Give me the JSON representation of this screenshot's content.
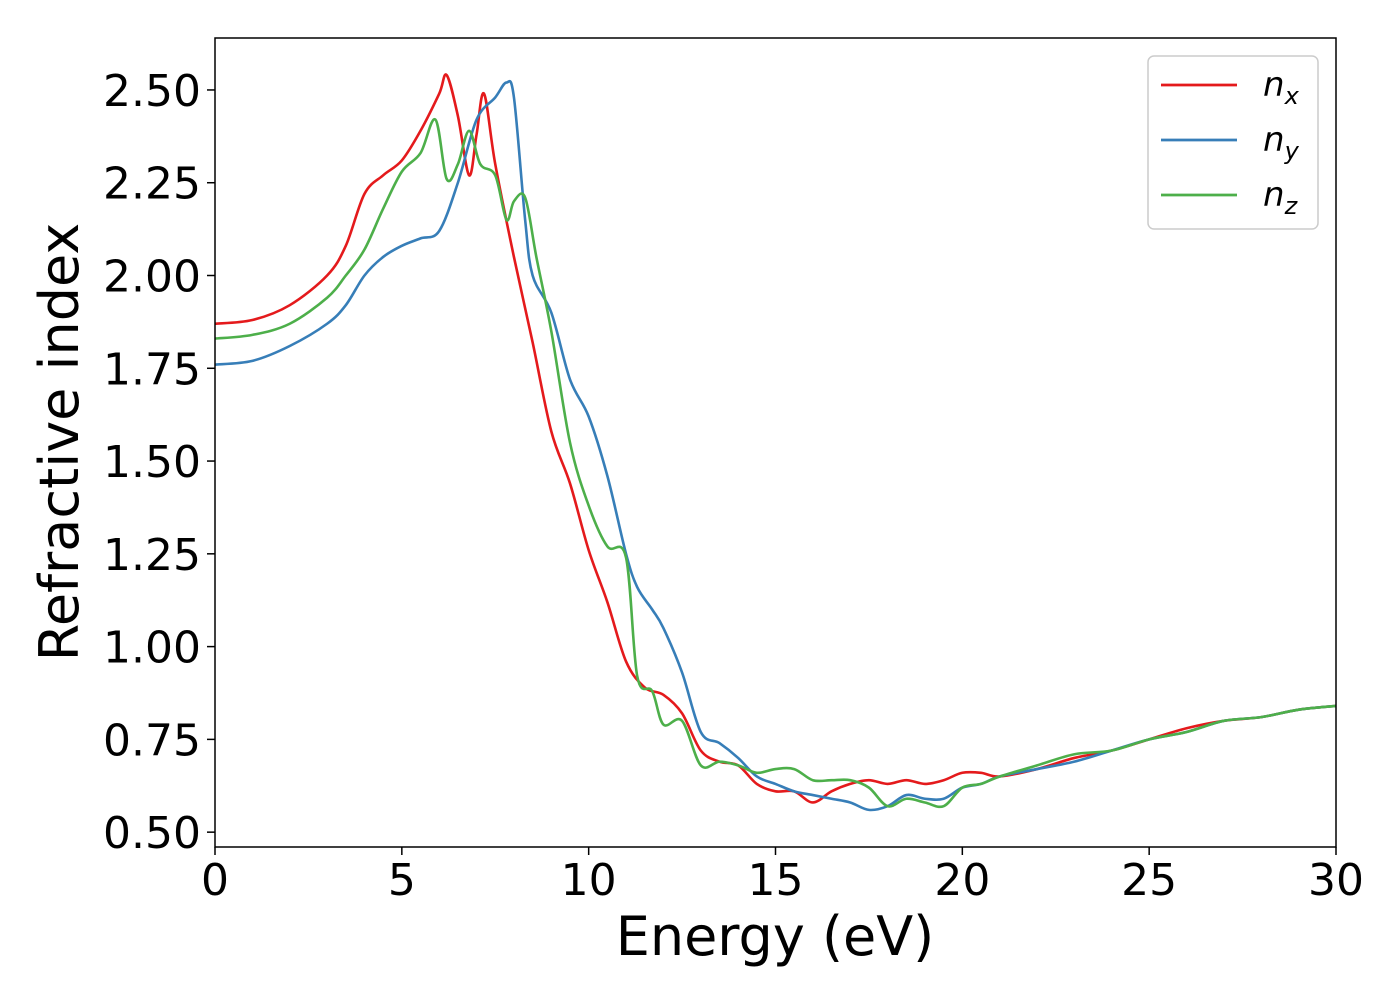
{
  "chart_data": {
    "type": "line",
    "title": "",
    "xlabel": "Energy (eV)",
    "ylabel": "Refractive index",
    "xlim": [
      0,
      30
    ],
    "ylim": [
      0.46,
      2.64
    ],
    "xticks": [
      0,
      5,
      10,
      15,
      20,
      25,
      30
    ],
    "xtick_labels": [
      "0",
      "5",
      "10",
      "15",
      "20",
      "25",
      "30"
    ],
    "yticks": [
      0.5,
      0.75,
      1.0,
      1.25,
      1.5,
      1.75,
      2.0,
      2.25,
      2.5
    ],
    "ytick_labels": [
      "0.50",
      "0.75",
      "1.00",
      "1.25",
      "1.50",
      "1.75",
      "2.00",
      "2.25",
      "2.50"
    ],
    "grid": false,
    "legend_position": "top-right",
    "series": [
      {
        "name": "n",
        "subscript": "x",
        "color": "#e41a1c",
        "x": [
          0,
          1,
          2,
          3,
          3.5,
          4,
          4.5,
          5,
          5.5,
          6,
          6.2,
          6.5,
          6.8,
          7.0,
          7.2,
          7.5,
          8.0,
          8.5,
          9.0,
          9.5,
          10,
          10.5,
          11,
          11.5,
          12,
          12.5,
          13,
          13.5,
          14,
          14.5,
          15,
          15.5,
          16,
          16.5,
          17,
          17.5,
          18,
          18.5,
          19,
          19.5,
          20,
          20.5,
          21,
          22,
          23,
          24,
          25,
          26,
          27,
          28,
          29,
          30
        ],
        "y": [
          1.87,
          1.88,
          1.92,
          2.0,
          2.08,
          2.22,
          2.27,
          2.31,
          2.39,
          2.49,
          2.54,
          2.43,
          2.27,
          2.38,
          2.49,
          2.3,
          2.05,
          1.82,
          1.58,
          1.44,
          1.26,
          1.12,
          0.96,
          0.89,
          0.87,
          0.82,
          0.72,
          0.69,
          0.68,
          0.63,
          0.61,
          0.61,
          0.58,
          0.61,
          0.63,
          0.64,
          0.63,
          0.64,
          0.63,
          0.64,
          0.66,
          0.66,
          0.65,
          0.67,
          0.7,
          0.72,
          0.75,
          0.78,
          0.8,
          0.81,
          0.83,
          0.84
        ]
      },
      {
        "name": "n",
        "subscript": "y",
        "color": "#377eb8",
        "x": [
          0,
          1,
          2,
          3,
          3.5,
          4,
          4.5,
          5,
          5.5,
          6,
          6.5,
          7,
          7.5,
          7.8,
          8.0,
          8.3,
          8.5,
          9.0,
          9.5,
          10,
          10.5,
          11,
          11.3,
          11.7,
          12,
          12.5,
          13,
          13.5,
          14,
          14.5,
          15,
          15.5,
          16,
          16.5,
          17,
          17.5,
          18,
          18.5,
          19,
          19.5,
          20,
          20.5,
          21,
          22,
          23,
          24,
          25,
          26,
          27,
          28,
          29,
          30
        ],
        "y": [
          1.76,
          1.77,
          1.81,
          1.87,
          1.92,
          2.0,
          2.05,
          2.08,
          2.1,
          2.12,
          2.25,
          2.42,
          2.48,
          2.52,
          2.48,
          2.15,
          2.0,
          1.9,
          1.72,
          1.62,
          1.46,
          1.25,
          1.16,
          1.1,
          1.05,
          0.93,
          0.77,
          0.74,
          0.7,
          0.65,
          0.63,
          0.61,
          0.6,
          0.59,
          0.58,
          0.56,
          0.57,
          0.6,
          0.59,
          0.59,
          0.62,
          0.63,
          0.65,
          0.67,
          0.69,
          0.72,
          0.75,
          0.77,
          0.8,
          0.81,
          0.83,
          0.84
        ]
      },
      {
        "name": "n",
        "subscript": "z",
        "color": "#4daf4a",
        "x": [
          0,
          1,
          2,
          3,
          3.5,
          4,
          4.5,
          5,
          5.5,
          5.9,
          6.2,
          6.5,
          6.8,
          7.1,
          7.5,
          7.8,
          8.0,
          8.3,
          8.6,
          9.0,
          9.5,
          10,
          10.5,
          11,
          11.3,
          11.7,
          12,
          12.5,
          13,
          13.5,
          14,
          14.5,
          15,
          15.5,
          16,
          16.5,
          17,
          17.5,
          18,
          18.5,
          19,
          19.5,
          20,
          20.5,
          21,
          22,
          23,
          24,
          25,
          26,
          27,
          28,
          29,
          30
        ],
        "y": [
          1.83,
          1.84,
          1.87,
          1.94,
          2.0,
          2.07,
          2.18,
          2.28,
          2.33,
          2.42,
          2.26,
          2.3,
          2.39,
          2.3,
          2.27,
          2.15,
          2.2,
          2.21,
          2.05,
          1.85,
          1.55,
          1.38,
          1.27,
          1.24,
          0.92,
          0.88,
          0.79,
          0.8,
          0.68,
          0.69,
          0.68,
          0.66,
          0.67,
          0.67,
          0.64,
          0.64,
          0.64,
          0.62,
          0.57,
          0.59,
          0.58,
          0.57,
          0.62,
          0.63,
          0.65,
          0.68,
          0.71,
          0.72,
          0.75,
          0.77,
          0.8,
          0.81,
          0.83,
          0.84
        ]
      }
    ]
  }
}
